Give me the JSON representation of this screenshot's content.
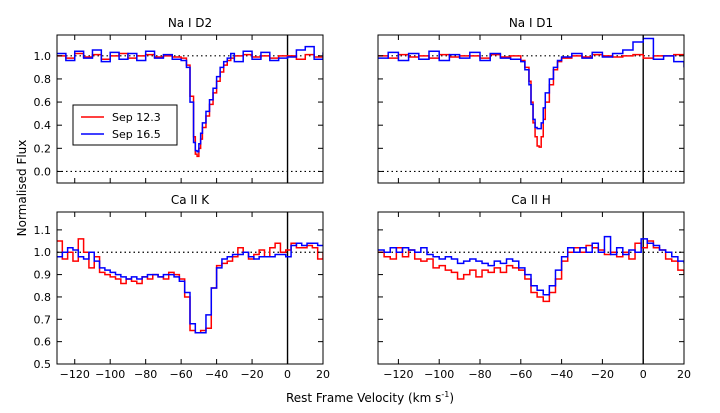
{
  "figure": {
    "ylabel": "Normalised Flux",
    "xlabel_main": "Rest Frame Velocity (km s",
    "xlabel_sup": "-1",
    "xlabel_close": ")"
  },
  "legend": {
    "entries": [
      {
        "label": "Sep 12.3",
        "color": "#ff0000"
      },
      {
        "label": "Sep 16.5",
        "color": "#0000ff"
      }
    ]
  },
  "chart_data": [
    {
      "type": "line",
      "title": "Na I D2",
      "xlim": [
        -130,
        20
      ],
      "ylim": [
        -0.1,
        1.18
      ],
      "xticks": [
        -120,
        -100,
        -80,
        -60,
        -40,
        -20,
        0,
        20
      ],
      "yticks": [
        0.0,
        0.2,
        0.4,
        0.6,
        0.8,
        1.0
      ],
      "ytick_labels": [
        "0.0",
        "0.2",
        "0.4",
        "0.6",
        "0.8",
        "1.0"
      ],
      "hlines": [
        1.0,
        0.0
      ],
      "vline": 0,
      "series": [
        {
          "name": "Sep 12.3",
          "color": "#ff0000",
          "x": [
            -130,
            -125,
            -120,
            -115,
            -110,
            -105,
            -100,
            -95,
            -90,
            -85,
            -80,
            -75,
            -70,
            -65,
            -60,
            -57,
            -55,
            -53,
            -52,
            -51,
            -50,
            -49,
            -48,
            -46,
            -44,
            -42,
            -40,
            -38,
            -36,
            -34,
            -32,
            -30,
            -25,
            -20,
            -15,
            -10,
            -5,
            0,
            5,
            10,
            15,
            20
          ],
          "y": [
            1.0,
            0.98,
            1.02,
            0.99,
            1.01,
            0.97,
            1.0,
            1.02,
            0.98,
            1.0,
            1.01,
            0.99,
            1.0,
            0.99,
            0.98,
            0.92,
            0.65,
            0.3,
            0.15,
            0.13,
            0.2,
            0.28,
            0.38,
            0.48,
            0.58,
            0.68,
            0.78,
            0.86,
            0.92,
            0.96,
            0.98,
            1.0,
            1.01,
            0.99,
            1.0,
            0.98,
            1.0,
            1.0,
            0.97,
            1.01,
            0.99,
            1.0
          ]
        },
        {
          "name": "Sep 16.5",
          "color": "#0000ff",
          "x": [
            -130,
            -125,
            -120,
            -115,
            -110,
            -105,
            -100,
            -95,
            -90,
            -85,
            -80,
            -75,
            -70,
            -65,
            -60,
            -57,
            -55,
            -53,
            -52,
            -51,
            -50,
            -49,
            -48,
            -46,
            -44,
            -42,
            -40,
            -38,
            -36,
            -34,
            -32,
            -30,
            -25,
            -20,
            -15,
            -10,
            -5,
            0,
            5,
            10,
            15,
            20
          ],
          "y": [
            1.02,
            0.96,
            1.04,
            0.98,
            1.05,
            0.95,
            1.03,
            0.97,
            1.02,
            0.96,
            1.04,
            0.98,
            1.01,
            0.97,
            0.96,
            0.9,
            0.6,
            0.25,
            0.18,
            0.17,
            0.24,
            0.33,
            0.42,
            0.52,
            0.62,
            0.72,
            0.82,
            0.9,
            0.95,
            0.98,
            1.02,
            0.95,
            1.04,
            0.97,
            1.03,
            0.96,
            0.98,
            0.99,
            1.05,
            1.08,
            0.97,
            1.03
          ]
        }
      ]
    },
    {
      "type": "line",
      "title": "Na I D1",
      "xlim": [
        -130,
        20
      ],
      "ylim": [
        -0.1,
        1.18
      ],
      "xticks": [
        -120,
        -100,
        -80,
        -60,
        -40,
        -20,
        0,
        20
      ],
      "yticks": [
        0.0,
        0.2,
        0.4,
        0.6,
        0.8,
        1.0
      ],
      "hlines": [
        1.0,
        0.0
      ],
      "vline": 0,
      "series": [
        {
          "name": "Sep 12.3",
          "color": "#ff0000",
          "x": [
            -130,
            -125,
            -120,
            -115,
            -110,
            -105,
            -100,
            -95,
            -90,
            -85,
            -80,
            -75,
            -70,
            -65,
            -60,
            -58,
            -56,
            -55,
            -54,
            -53,
            -52,
            -51,
            -50,
            -49,
            -48,
            -46,
            -44,
            -42,
            -40,
            -35,
            -30,
            -25,
            -20,
            -15,
            -10,
            -5,
            0,
            5,
            10,
            15,
            20
          ],
          "y": [
            1.0,
            0.98,
            1.01,
            0.99,
            1.0,
            0.98,
            1.01,
            0.99,
            1.0,
            1.0,
            0.98,
            1.01,
            0.99,
            1.0,
            0.96,
            0.9,
            0.78,
            0.6,
            0.42,
            0.3,
            0.22,
            0.21,
            0.3,
            0.45,
            0.6,
            0.75,
            0.88,
            0.95,
            0.98,
            1.0,
            0.99,
            1.01,
            1.0,
            0.99,
            1.0,
            1.01,
            0.98,
            1.0,
            1.0,
            1.01,
            1.0
          ]
        },
        {
          "name": "Sep 16.5",
          "color": "#0000ff",
          "x": [
            -130,
            -125,
            -120,
            -115,
            -110,
            -105,
            -100,
            -95,
            -90,
            -85,
            -80,
            -75,
            -70,
            -65,
            -60,
            -58,
            -56,
            -55,
            -54,
            -53,
            -52,
            -51,
            -50,
            -49,
            -48,
            -46,
            -44,
            -42,
            -40,
            -35,
            -30,
            -25,
            -20,
            -15,
            -10,
            -5,
            0,
            5,
            10,
            15,
            20
          ],
          "y": [
            0.98,
            1.03,
            0.96,
            1.02,
            0.97,
            1.04,
            0.96,
            1.01,
            0.98,
            1.03,
            0.96,
            1.02,
            0.98,
            0.97,
            0.95,
            0.88,
            0.75,
            0.58,
            0.45,
            0.38,
            0.37,
            0.37,
            0.42,
            0.55,
            0.68,
            0.8,
            0.9,
            0.96,
            0.99,
            1.02,
            0.98,
            1.03,
            0.99,
            1.02,
            1.05,
            1.12,
            1.15,
            0.97,
            1.0,
            0.95,
            0.9
          ]
        }
      ]
    },
    {
      "type": "line",
      "title": "Ca II K",
      "xlim": [
        -130,
        20
      ],
      "ylim": [
        0.5,
        1.18
      ],
      "xticks": [
        -120,
        -100,
        -80,
        -60,
        -40,
        -20,
        0,
        20
      ],
      "xtick_labels": [
        "−120",
        "−100",
        "−80",
        "−60",
        "−40",
        "−20",
        "0",
        "20"
      ],
      "yticks": [
        0.5,
        0.6,
        0.7,
        0.8,
        0.9,
        1.0,
        1.1
      ],
      "ytick_labels": [
        "0.5",
        "0.6",
        "0.7",
        "0.8",
        "0.9",
        "1.0",
        "1.1"
      ],
      "hlines": [
        1.0
      ],
      "vline": 0,
      "series": [
        {
          "name": "Sep 12.3",
          "color": "#ff0000",
          "x": [
            -130,
            -127,
            -124,
            -121,
            -118,
            -115,
            -112,
            -109,
            -106,
            -103,
            -100,
            -97,
            -94,
            -91,
            -88,
            -85,
            -82,
            -79,
            -76,
            -73,
            -70,
            -67,
            -64,
            -61,
            -58,
            -55,
            -52,
            -49,
            -46,
            -43,
            -40,
            -37,
            -34,
            -31,
            -28,
            -25,
            -22,
            -19,
            -16,
            -13,
            -10,
            -7,
            -4,
            -1,
            2,
            5,
            8,
            11,
            14,
            17,
            20
          ],
          "y": [
            1.05,
            0.97,
            1.0,
            0.96,
            1.06,
            1.0,
            0.93,
            0.98,
            0.91,
            0.9,
            0.89,
            0.88,
            0.86,
            0.88,
            0.87,
            0.86,
            0.89,
            0.88,
            0.9,
            0.89,
            0.88,
            0.91,
            0.9,
            0.88,
            0.8,
            0.65,
            0.64,
            0.65,
            0.66,
            0.84,
            0.94,
            0.95,
            0.96,
            0.98,
            1.02,
            1.0,
            0.97,
            0.99,
            1.01,
            0.98,
            1.02,
            1.04,
            1.0,
            1.01,
            1.04,
            1.02,
            1.02,
            1.03,
            1.02,
            0.97,
            1.0
          ]
        },
        {
          "name": "Sep 16.5",
          "color": "#0000ff",
          "x": [
            -130,
            -127,
            -124,
            -121,
            -118,
            -115,
            -112,
            -109,
            -106,
            -103,
            -100,
            -97,
            -94,
            -91,
            -88,
            -85,
            -82,
            -79,
            -76,
            -73,
            -70,
            -67,
            -64,
            -61,
            -58,
            -55,
            -52,
            -49,
            -46,
            -43,
            -40,
            -37,
            -34,
            -31,
            -28,
            -25,
            -22,
            -19,
            -16,
            -13,
            -10,
            -7,
            -4,
            -1,
            2,
            5,
            8,
            11,
            14,
            17,
            20
          ],
          "y": [
            0.98,
            1.0,
            1.02,
            1.01,
            0.98,
            0.97,
            1.0,
            0.96,
            0.93,
            0.92,
            0.91,
            0.9,
            0.89,
            0.88,
            0.89,
            0.88,
            0.89,
            0.9,
            0.9,
            0.89,
            0.9,
            0.9,
            0.89,
            0.87,
            0.82,
            0.68,
            0.64,
            0.64,
            0.72,
            0.84,
            0.93,
            0.97,
            0.98,
            0.99,
            0.99,
            1.0,
            0.98,
            0.97,
            0.98,
            0.98,
            0.98,
            0.99,
            0.99,
            0.98,
            1.03,
            1.04,
            1.03,
            1.04,
            1.04,
            1.03,
            1.03
          ]
        }
      ]
    },
    {
      "type": "line",
      "title": "Ca II H",
      "xlim": [
        -130,
        20
      ],
      "ylim": [
        0.5,
        1.18
      ],
      "xticks": [
        -120,
        -100,
        -80,
        -60,
        -40,
        -20,
        0,
        20
      ],
      "yticks": [
        0.5,
        0.6,
        0.7,
        0.8,
        0.9,
        1.0,
        1.1
      ],
      "hlines": [
        1.0
      ],
      "vline": 0,
      "series": [
        {
          "name": "Sep 12.3",
          "color": "#ff0000",
          "x": [
            -130,
            -127,
            -124,
            -121,
            -118,
            -115,
            -112,
            -109,
            -106,
            -103,
            -100,
            -97,
            -94,
            -91,
            -88,
            -85,
            -82,
            -79,
            -76,
            -73,
            -70,
            -67,
            -64,
            -61,
            -58,
            -55,
            -52,
            -49,
            -46,
            -43,
            -40,
            -37,
            -34,
            -31,
            -28,
            -25,
            -22,
            -19,
            -16,
            -13,
            -10,
            -7,
            -4,
            -1,
            2,
            5,
            8,
            11,
            14,
            17,
            20
          ],
          "y": [
            1.0,
            0.98,
            0.97,
            1.02,
            0.98,
            1.01,
            0.97,
            0.96,
            0.97,
            0.93,
            0.94,
            0.92,
            0.91,
            0.88,
            0.9,
            0.92,
            0.89,
            0.92,
            0.91,
            0.93,
            0.91,
            0.94,
            0.93,
            0.92,
            0.88,
            0.82,
            0.8,
            0.78,
            0.82,
            0.88,
            0.96,
            1.0,
            1.02,
            1.0,
            1.03,
            1.02,
            1.01,
            0.99,
            1.0,
            0.98,
            1.0,
            0.97,
            1.04,
            1.02,
            1.05,
            1.02,
            1.01,
            0.97,
            0.96,
            0.92,
            0.9
          ]
        },
        {
          "name": "Sep 16.5",
          "color": "#0000ff",
          "x": [
            -130,
            -127,
            -124,
            -121,
            -118,
            -115,
            -112,
            -109,
            -106,
            -103,
            -100,
            -97,
            -94,
            -91,
            -88,
            -85,
            -82,
            -79,
            -76,
            -73,
            -70,
            -67,
            -64,
            -61,
            -58,
            -55,
            -52,
            -49,
            -46,
            -43,
            -40,
            -37,
            -34,
            -31,
            -28,
            -25,
            -22,
            -19,
            -16,
            -13,
            -10,
            -7,
            -4,
            -1,
            2,
            5,
            8,
            11,
            14,
            17,
            20
          ],
          "y": [
            1.01,
            1.0,
            1.02,
            1.0,
            1.02,
            1.01,
            1.0,
            1.02,
            0.99,
            0.98,
            0.97,
            0.98,
            0.97,
            0.95,
            0.96,
            0.97,
            0.96,
            0.95,
            0.94,
            0.96,
            0.95,
            0.97,
            0.96,
            0.93,
            0.9,
            0.85,
            0.83,
            0.81,
            0.85,
            0.92,
            0.98,
            1.02,
            1.0,
            1.02,
            1.0,
            1.04,
            1.0,
            1.07,
            0.99,
            1.02,
            0.99,
            1.01,
            1.0,
            1.06,
            1.04,
            1.03,
            1.01,
            1.0,
            0.98,
            0.96,
            0.95
          ]
        }
      ]
    }
  ]
}
